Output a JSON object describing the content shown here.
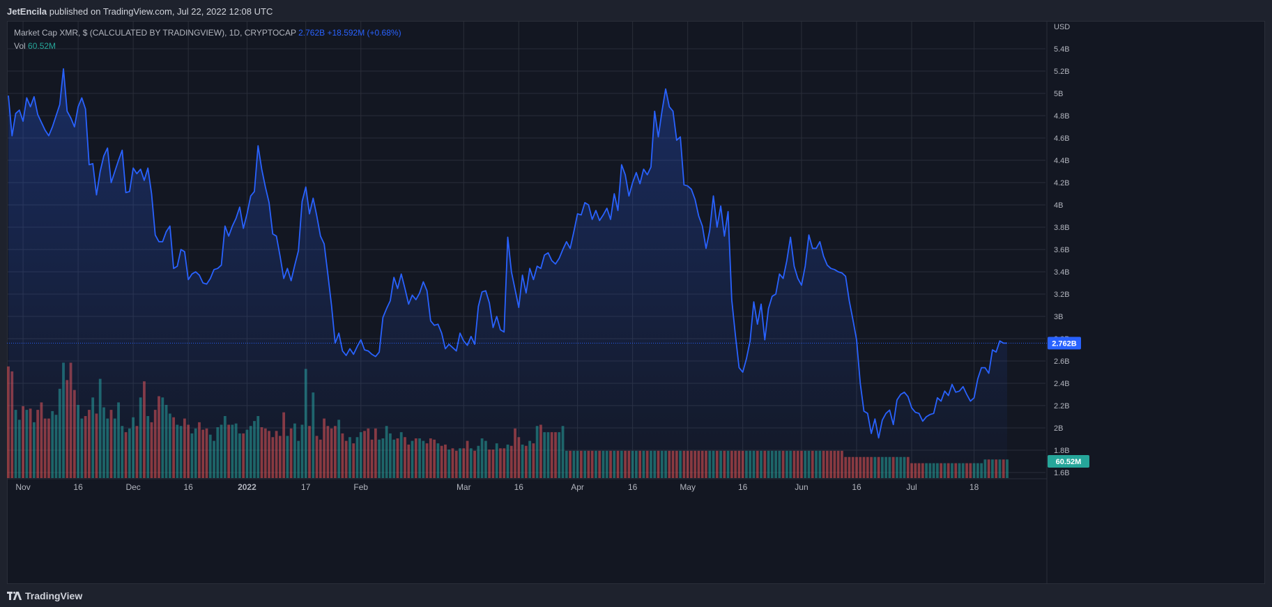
{
  "header": {
    "author": "JetEncila",
    "published_text": "published on TradingView.com, Jul 22, 2022 12:08 UTC"
  },
  "legend": {
    "symbol_text": "Market Cap XMR, $ (CALCULATED BY TRADINGVIEW), 1D, CRYPTOCAP",
    "last_value": "2.762B",
    "change": "+18.592M (+0.68%)",
    "vol_label": "Vol",
    "vol_value": "60.52M"
  },
  "footer": {
    "brand": "TradingView"
  },
  "colors": {
    "line": "#2962ff",
    "vol_up": "#26a69a",
    "vol_down": "#ef5350",
    "background": "#131722",
    "grid": "#2a2e39"
  },
  "chart_data": {
    "type": "line",
    "title": "Market Cap XMR, $ (CALCULATED BY TRADINGVIEW), 1D, CRYPTOCAP",
    "currency_label": "USD",
    "ylim": [
      1.55,
      5.65
    ],
    "y_ticks": [
      1.6,
      1.8,
      2.0,
      2.2,
      2.4,
      2.6,
      2.8,
      3.0,
      3.2,
      3.4,
      3.6,
      3.8,
      4.0,
      4.2,
      4.4,
      4.6,
      4.8,
      5.0,
      5.2,
      5.4
    ],
    "y_tick_labels": [
      "1.6B",
      "1.8B",
      "2B",
      "2.2B",
      "2.4B",
      "2.6B",
      "2.8B",
      "3B",
      "3.2B",
      "3.4B",
      "3.6B",
      "3.8B",
      "4B",
      "4.2B",
      "4.4B",
      "4.6B",
      "4.8B",
      "5B",
      "5.2B",
      "5.4B"
    ],
    "x_ticks": [
      {
        "label": "Nov",
        "day": 4
      },
      {
        "label": "16",
        "day": 19
      },
      {
        "label": "Dec",
        "day": 34
      },
      {
        "label": "16",
        "day": 49
      },
      {
        "label": "2022",
        "day": 65
      },
      {
        "label": "17",
        "day": 81
      },
      {
        "label": "Feb",
        "day": 96
      },
      {
        "label": "Mar",
        "day": 124
      },
      {
        "label": "16",
        "day": 139
      },
      {
        "label": "Apr",
        "day": 155
      },
      {
        "label": "16",
        "day": 170
      },
      {
        "label": "May",
        "day": 185
      },
      {
        "label": "16",
        "day": 200
      },
      {
        "label": "Jun",
        "day": 216
      },
      {
        "label": "16",
        "day": 231
      },
      {
        "label": "Jul",
        "day": 246
      },
      {
        "label": "18",
        "day": 263
      }
    ],
    "last_value_label": "2.762B",
    "last_vol_label": "60.52M",
    "series": [
      {
        "values": [
          4.98,
          4.62,
          4.82,
          4.85,
          4.75,
          4.96,
          4.88,
          4.97,
          4.81,
          4.74,
          4.67,
          4.62,
          4.7,
          4.8,
          4.9,
          5.22,
          4.84,
          4.78,
          4.7,
          4.88,
          4.96,
          4.86,
          4.36,
          4.37,
          4.09,
          4.3,
          4.44,
          4.51,
          4.2,
          4.3,
          4.4,
          4.49,
          4.11,
          4.12,
          4.33,
          4.28,
          4.32,
          4.22,
          4.33,
          4.1,
          3.73,
          3.67,
          3.67,
          3.76,
          3.81,
          3.43,
          3.45,
          3.6,
          3.58,
          3.33,
          3.38,
          3.4,
          3.37,
          3.3,
          3.29,
          3.34,
          3.42,
          3.43,
          3.46,
          3.81,
          3.72,
          3.81,
          3.88,
          3.98,
          3.79,
          3.92,
          4.08,
          4.12,
          4.53,
          4.32,
          4.16,
          4.02,
          3.74,
          3.72,
          3.54,
          3.34,
          3.43,
          3.32,
          3.46,
          3.59,
          4.03,
          4.16,
          3.92,
          4.06,
          3.9,
          3.72,
          3.65,
          3.38,
          3.1,
          2.76,
          2.85,
          2.69,
          2.65,
          2.71,
          2.66,
          2.73,
          2.79,
          2.7,
          2.69,
          2.66,
          2.64,
          2.68,
          2.99,
          3.07,
          3.14,
          3.35,
          3.25,
          3.38,
          3.25,
          3.11,
          3.19,
          3.15,
          3.21,
          3.31,
          3.23,
          2.96,
          2.92,
          2.93,
          2.85,
          2.71,
          2.75,
          2.72,
          2.69,
          2.85,
          2.78,
          2.74,
          2.82,
          2.75,
          3.09,
          3.22,
          3.23,
          3.12,
          2.9,
          3.0,
          2.88,
          2.86,
          3.71,
          3.4,
          3.24,
          3.08,
          3.37,
          3.21,
          3.43,
          3.33,
          3.45,
          3.43,
          3.55,
          3.57,
          3.5,
          3.47,
          3.52,
          3.6,
          3.67,
          3.61,
          3.76,
          3.92,
          3.91,
          4.02,
          4.0,
          3.87,
          3.95,
          3.86,
          3.91,
          3.97,
          3.87,
          4.1,
          3.95,
          4.36,
          4.27,
          4.08,
          4.2,
          4.29,
          4.19,
          4.32,
          4.27,
          4.34,
          4.84,
          4.61,
          4.84,
          5.04,
          4.88,
          4.84,
          4.58,
          4.61,
          4.18,
          4.17,
          4.14,
          4.05,
          3.9,
          3.81,
          3.61,
          3.77,
          4.08,
          3.8,
          3.99,
          3.72,
          3.94,
          3.15,
          2.83,
          2.54,
          2.5,
          2.62,
          2.78,
          3.13,
          2.93,
          3.11,
          2.79,
          3.07,
          3.18,
          3.2,
          3.38,
          3.34,
          3.5,
          3.71,
          3.45,
          3.34,
          3.28,
          3.45,
          3.73,
          3.61,
          3.61,
          3.67,
          3.54,
          3.46,
          3.43,
          3.42,
          3.4,
          3.39,
          3.36,
          3.14,
          2.97,
          2.79,
          2.4,
          2.15,
          2.13,
          1.95,
          2.08,
          1.91,
          2.07,
          2.13,
          2.16,
          2.03,
          2.25,
          2.3,
          2.32,
          2.28,
          2.18,
          2.14,
          2.13,
          2.06,
          2.1,
          2.12,
          2.13,
          2.27,
          2.24,
          2.33,
          2.29,
          2.39,
          2.32,
          2.33,
          2.37,
          2.3,
          2.24,
          2.27,
          2.44,
          2.54,
          2.54,
          2.49,
          2.7,
          2.68,
          2.78,
          2.76,
          2.76
        ]
      }
    ],
    "volume_scale_max": 1.0,
    "volume_colors_pattern": "up: teal, down: red (by daily price change)",
    "volume": [
      0.9,
      0.86,
      0.55,
      0.47,
      0.58,
      0.55,
      0.56,
      0.45,
      0.55,
      0.61,
      0.48,
      0.48,
      0.54,
      0.51,
      0.72,
      0.93,
      0.79,
      0.93,
      0.71,
      0.59,
      0.48,
      0.5,
      0.55,
      0.65,
      0.52,
      0.8,
      0.57,
      0.48,
      0.55,
      0.48,
      0.61,
      0.42,
      0.37,
      0.4,
      0.49,
      0.42,
      0.65,
      0.78,
      0.5,
      0.45,
      0.55,
      0.66,
      0.65,
      0.59,
      0.52,
      0.49,
      0.43,
      0.42,
      0.48,
      0.43,
      0.36,
      0.4,
      0.45,
      0.39,
      0.4,
      0.35,
      0.3,
      0.41,
      0.43,
      0.5,
      0.43,
      0.43,
      0.44,
      0.36,
      0.36,
      0.39,
      0.42,
      0.46,
      0.5,
      0.41,
      0.4,
      0.38,
      0.33,
      0.38,
      0.34,
      0.53,
      0.34,
      0.4,
      0.44,
      0.3,
      0.43,
      0.88,
      0.42,
      0.69,
      0.34,
      0.31,
      0.48,
      0.42,
      0.4,
      0.42,
      0.47,
      0.36,
      0.3,
      0.33,
      0.28,
      0.33,
      0.37,
      0.38,
      0.4,
      0.31,
      0.4,
      0.31,
      0.32,
      0.42,
      0.36,
      0.31,
      0.32,
      0.37,
      0.33,
      0.27,
      0.3,
      0.32,
      0.32,
      0.3,
      0.28,
      0.32,
      0.31,
      0.28,
      0.26,
      0.27,
      0.23,
      0.24,
      0.22,
      0.24,
      0.24,
      0.3,
      0.24,
      0.22,
      0.26,
      0.32,
      0.3,
      0.23,
      0.23,
      0.28,
      0.24,
      0.24,
      0.27,
      0.26,
      0.4,
      0.33,
      0.27,
      0.26,
      0.3,
      0.28,
      0.42,
      0.43,
      0.37,
      0.37,
      0.37,
      0.37,
      0.37,
      0.42,
      0.22,
      0.22,
      0.22,
      0.22,
      0.22,
      0.22,
      0.22,
      0.22,
      0.22,
      0.22,
      0.22,
      0.22,
      0.22,
      0.22,
      0.22,
      0.22,
      0.22,
      0.22,
      0.22,
      0.22,
      0.22,
      0.22,
      0.22,
      0.22,
      0.22,
      0.22,
      0.22,
      0.22,
      0.22,
      0.22,
      0.22,
      0.22,
      0.22,
      0.22,
      0.22,
      0.22,
      0.22,
      0.22,
      0.22,
      0.22,
      0.22,
      0.22,
      0.22,
      0.22,
      0.22,
      0.22,
      0.22,
      0.22,
      0.22,
      0.22,
      0.22,
      0.22,
      0.22,
      0.22,
      0.22,
      0.22,
      0.22,
      0.22,
      0.22,
      0.22,
      0.22,
      0.22,
      0.22,
      0.22,
      0.22,
      0.22,
      0.22,
      0.22,
      0.22,
      0.22,
      0.22,
      0.22,
      0.22,
      0.22,
      0.22,
      0.22,
      0.17,
      0.17,
      0.17,
      0.17,
      0.17,
      0.17,
      0.17,
      0.17,
      0.17,
      0.17,
      0.17,
      0.17,
      0.17,
      0.17,
      0.17,
      0.17,
      0.17,
      0.17,
      0.12,
      0.12,
      0.12,
      0.12,
      0.12,
      0.12,
      0.12,
      0.12,
      0.12,
      0.12,
      0.12,
      0.12,
      0.12,
      0.12,
      0.12,
      0.12,
      0.12,
      0.12,
      0.12,
      0.12,
      0.15,
      0.15,
      0.15,
      0.15,
      0.15,
      0.15,
      0.15,
      0.15,
      0.13,
      0.13,
      0.13,
      0.13,
      0.13,
      0.13,
      0.13,
      0.13,
      0.13,
      0.13,
      0.13,
      0.13,
      0.13,
      0.13,
      0.13,
      0.13,
      0.13,
      0.13,
      0.13,
      0.13,
      0.13,
      0.13,
      0.13,
      0.13,
      0.13,
      0.13,
      0.13,
      0.13,
      0.13,
      0.13,
      0.13,
      0.13,
      0.13,
      0.13
    ]
  }
}
